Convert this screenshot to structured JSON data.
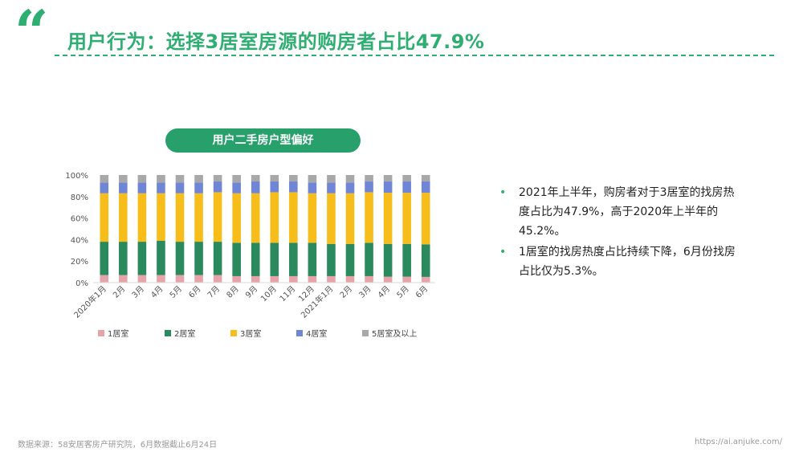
{
  "header": {
    "quote_glyph": "“",
    "title": "用户行为：选择3居室房源的购房者占比47.9%"
  },
  "chart_title": "用户二手房户型偏好",
  "chart_data": {
    "type": "bar",
    "stacked": true,
    "categories": [
      "2020年1月",
      "2月",
      "3月",
      "4月",
      "5月",
      "6月",
      "7月",
      "8月",
      "9月",
      "10月",
      "11月",
      "12月",
      "2021年1月",
      "2月",
      "3月",
      "4月",
      "5月",
      "6月"
    ],
    "y_ticks": [
      "0%",
      "20%",
      "40%",
      "60%",
      "80%",
      "100%"
    ],
    "ylim": [
      0,
      100
    ],
    "legend_position": "bottom",
    "series": [
      {
        "name": "1居室",
        "color": "#e8a3a8",
        "values": [
          7,
          7,
          7,
          7,
          7,
          7,
          7,
          6,
          6,
          6,
          6,
          6,
          6,
          6,
          6,
          5.5,
          5.5,
          5.3
        ]
      },
      {
        "name": "2居室",
        "color": "#2a8a5e",
        "values": [
          31,
          31,
          31,
          32,
          31,
          31,
          31,
          31,
          31,
          31,
          31,
          31,
          30,
          30,
          31,
          30.5,
          30.5,
          30.3
        ]
      },
      {
        "name": "3居室",
        "color": "#f7be1b",
        "values": [
          45,
          45,
          45,
          44,
          45,
          45,
          46,
          46,
          46,
          47,
          47,
          46,
          47,
          47,
          47,
          47.5,
          47.5,
          47.9
        ]
      },
      {
        "name": "4居室",
        "color": "#6f86d6",
        "values": [
          10,
          10,
          10,
          10,
          10,
          10,
          10,
          10,
          11,
          10,
          10,
          10,
          10,
          10,
          10,
          10.5,
          10.5,
          10.5
        ]
      },
      {
        "name": "5居室及以上",
        "color": "#a8a8a8",
        "values": [
          7,
          7,
          7,
          7,
          7,
          7,
          6,
          7,
          6,
          6,
          6,
          7,
          7,
          7,
          6,
          6,
          6,
          6
        ]
      }
    ]
  },
  "bullets": [
    "2021年上半年，购房者对于3居室的找房热度占比为47.9%，高于2020年上半年的45.2%。",
    "1居室的找房热度占比持续下降，6月份找房占比仅为5.3%。"
  ],
  "footer": {
    "source": "数据来源：58安居客房产研究院，6月数据截止6月24日",
    "url": "https://ai.anjuke.com/"
  }
}
